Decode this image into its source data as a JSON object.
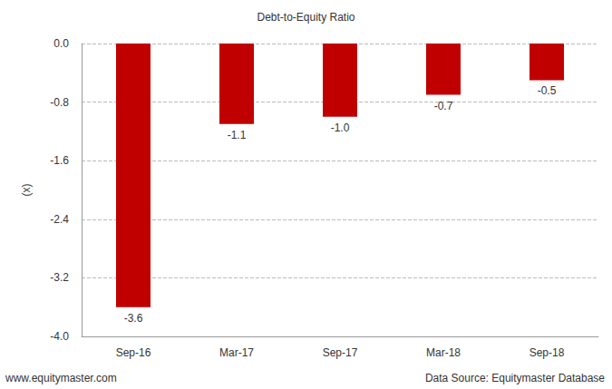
{
  "chart_data": {
    "type": "bar",
    "title": "Debt-to-Equity Ratio",
    "y_label": "(x)",
    "categories": [
      "Sep-16",
      "Mar-17",
      "Sep-17",
      "Mar-18",
      "Sep-18"
    ],
    "values": [
      -3.6,
      -1.1,
      -1.0,
      -0.7,
      -0.5
    ],
    "value_labels": [
      "-3.6",
      "-1.1",
      "-1.0",
      "-0.7",
      "-0.5"
    ],
    "color": "#c00000",
    "ylim": [
      -4.0,
      0.0
    ],
    "yticks": [
      {
        "value": -4.0,
        "label": "-4.0"
      },
      -3.2,
      -2.4,
      -1.6,
      -0.8,
      {
        "value": 0.0,
        "label": "0.0"
      }
    ],
    "grid": true,
    "data_labels": true,
    "annotations": [
      "www.equitymaster.com",
      "Data Source: Equitymaster Database"
    ]
  }
}
